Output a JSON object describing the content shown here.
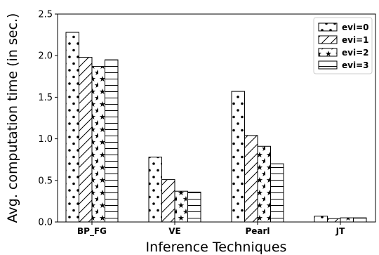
{
  "chart_data": {
    "type": "bar",
    "categories": [
      "BP_FG",
      "VE",
      "Pearl",
      "JT"
    ],
    "series": [
      {
        "name": "evi=0",
        "values": [
          2.28,
          0.78,
          1.57,
          0.07
        ],
        "hatch": "dots"
      },
      {
        "name": "evi=1",
        "values": [
          1.98,
          0.51,
          1.04,
          0.04
        ],
        "hatch": "diagonal"
      },
      {
        "name": "evi=2",
        "values": [
          1.87,
          0.37,
          0.91,
          0.05
        ],
        "hatch": "stars"
      },
      {
        "name": "evi=3",
        "values": [
          1.95,
          0.36,
          0.7,
          0.05
        ],
        "hatch": "horizontal"
      }
    ],
    "title": "",
    "xlabel": "Inference Techniques",
    "ylabel": "Avg. computation time (in sec.)",
    "ylim": [
      0,
      2.5
    ],
    "yticks": [
      "0.0",
      "0.5",
      "1.0",
      "1.5",
      "2.0",
      "2.5"
    ],
    "grid": false,
    "legend_position": "top-right"
  }
}
